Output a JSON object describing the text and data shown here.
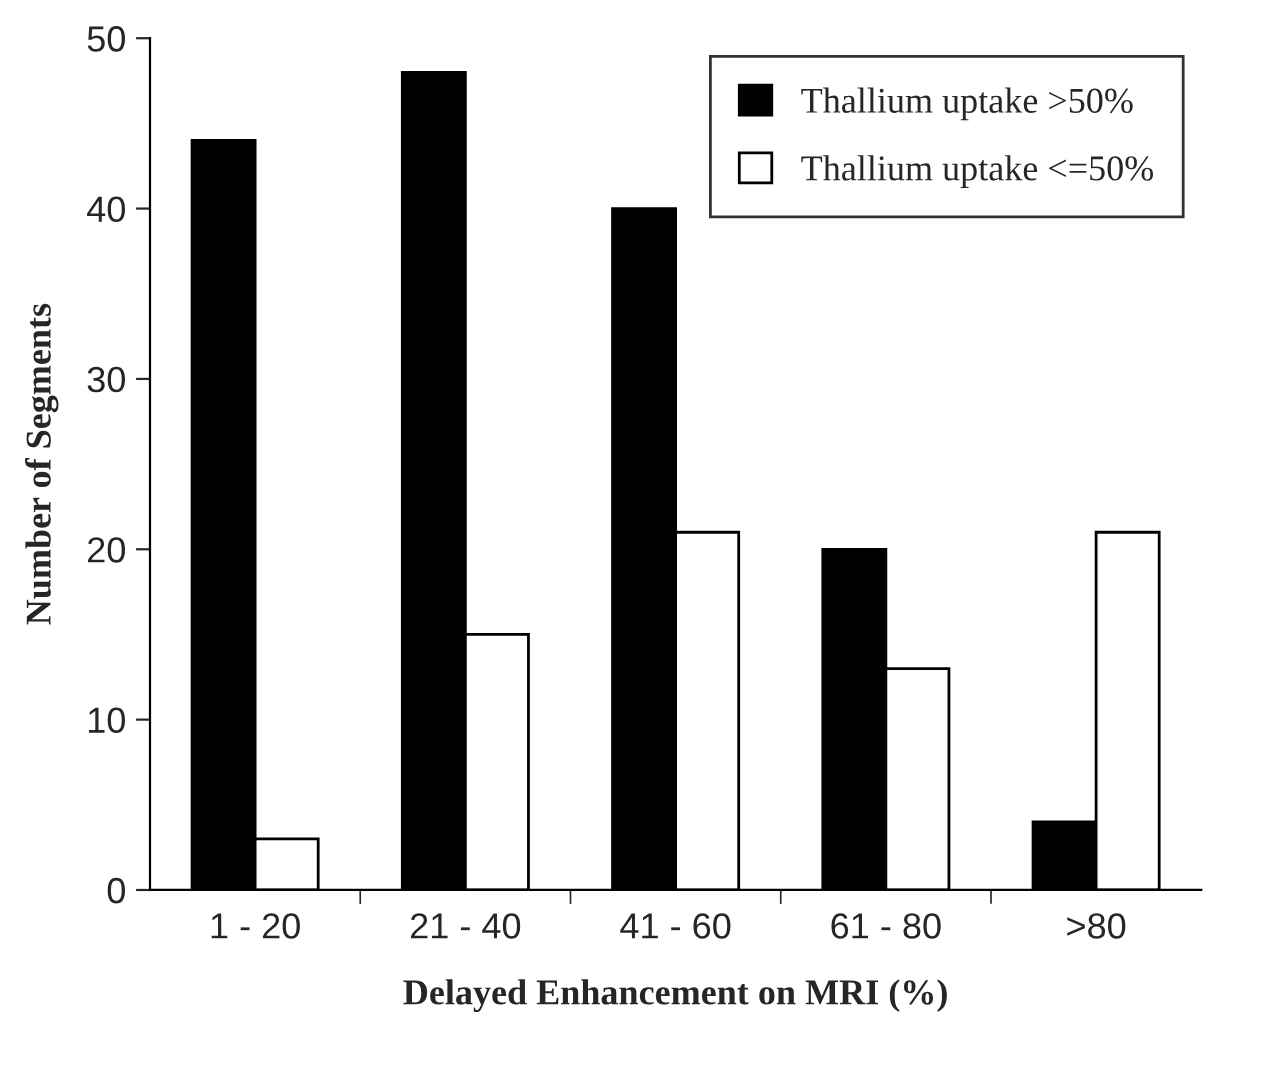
{
  "chart_data": {
    "type": "bar",
    "xlabel": "Delayed Enhancement on MRI (%)",
    "ylabel": "Number of Segments",
    "categories": [
      "1 - 20",
      "21 - 40",
      "41 - 60",
      "61 - 80",
      ">80"
    ],
    "series": [
      {
        "name": "Thallium uptake >50%",
        "color": "#000000",
        "values": [
          44,
          48,
          40,
          20,
          4
        ]
      },
      {
        "name": "Thallium uptake <=50%",
        "color": "#ffffff",
        "values": [
          3,
          15,
          21,
          13,
          21
        ]
      }
    ],
    "ylim": [
      0,
      50
    ],
    "yticks": [
      0,
      10,
      20,
      30,
      40,
      50
    ],
    "grid": false,
    "legend": "top right"
  }
}
